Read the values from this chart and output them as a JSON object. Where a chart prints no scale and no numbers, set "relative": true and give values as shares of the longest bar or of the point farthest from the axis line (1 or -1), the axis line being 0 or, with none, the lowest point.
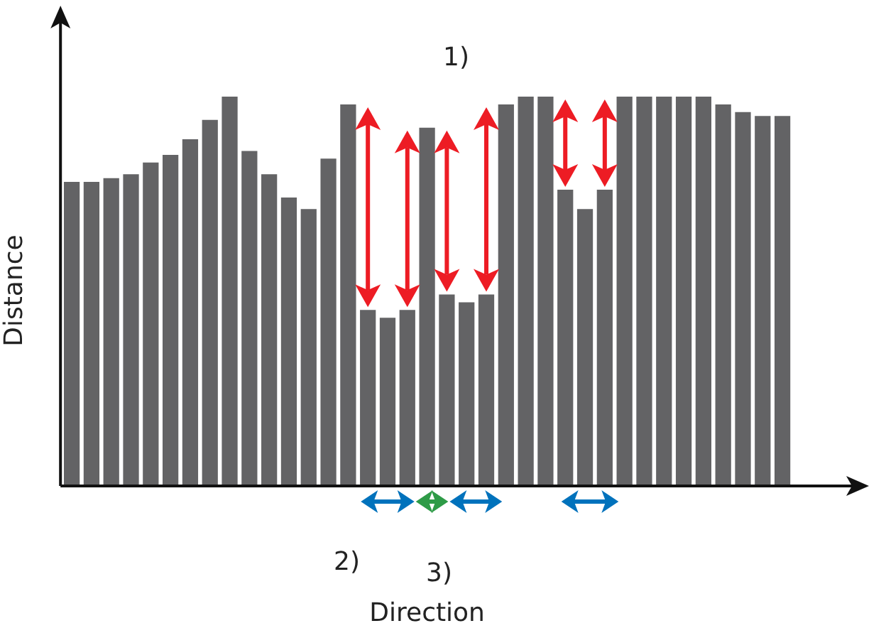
{
  "chart_data": {
    "type": "bar",
    "relative": true,
    "xlabel": "Direction",
    "ylabel": "Distance",
    "grid": false,
    "legend": false,
    "categories": [
      null,
      null,
      null,
      null,
      null,
      null,
      null,
      null,
      null,
      null,
      null,
      null,
      null,
      null,
      null,
      null,
      null,
      null,
      null,
      null,
      null,
      null,
      null,
      null,
      null,
      null,
      null,
      null,
      null,
      null,
      null,
      null,
      null,
      null,
      null,
      null,
      null
    ],
    "color": "#636365",
    "values": [
      0.78,
      0.78,
      0.79,
      0.8,
      0.83,
      0.85,
      0.89,
      0.94,
      1,
      0.86,
      0.8,
      0.74,
      0.71,
      0.84,
      0.98,
      0.45,
      0.43,
      0.45,
      0.92,
      0.49,
      0.47,
      0.49,
      0.98,
      1,
      1,
      0.76,
      0.71,
      0.76,
      1,
      1,
      1,
      1,
      1,
      0.98,
      0.96,
      0.95,
      0.95
    ],
    "annotations": [
      "1)",
      "2)",
      "3)"
    ]
  }
}
